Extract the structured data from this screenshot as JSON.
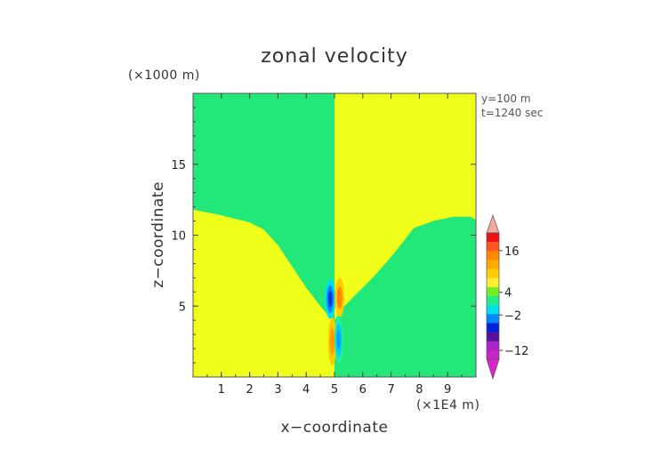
{
  "chart_data": {
    "type": "heatmap",
    "title": "zonal velocity",
    "xlabel": "x−coordinate",
    "ylabel": "z−coordinate",
    "x_unit": "(×1E4 m)",
    "y_unit": "(×1000 m)",
    "annotations": [
      "y=100 m",
      "t=1240 sec"
    ],
    "xlim": [
      0,
      10
    ],
    "ylim": [
      0,
      20
    ],
    "x_ticks": [
      "1",
      "2",
      "3",
      "4",
      "5",
      "6",
      "7",
      "8",
      "9"
    ],
    "y_ticks": [
      "5",
      "10",
      "15"
    ],
    "colorbar": {
      "tick_labels": [
        "16",
        "4",
        "−2",
        "−12"
      ],
      "colors": [
        "#ee1111",
        "#ff5522",
        "#ff8800",
        "#ffaa00",
        "#ffcc00",
        "#ffee33",
        "#77ee22",
        "#22ee88",
        "#00ddee",
        "#0088ff",
        "#0022dd",
        "#551199",
        "#aa22cc",
        "#cc22cc"
      ],
      "extend_top_color": "#f4a6a0",
      "extend_bottom_color": "#dd22cc"
    },
    "regions": {
      "positive_color": "#f0ff1a",
      "negative_color": "#22e87a"
    },
    "boundary_left": {
      "x": [
        0,
        1,
        2,
        2.5,
        3,
        3.5,
        4,
        4.5,
        4.8,
        5
      ],
      "z": [
        11.8,
        11.4,
        10.9,
        10.4,
        9.3,
        7.8,
        6.3,
        5.0,
        4.3,
        4.0
      ]
    },
    "boundary_right": {
      "x": [
        5,
        5.3,
        5.8,
        6.3,
        6.8,
        7.3,
        7.8,
        8.5,
        9.2,
        9.8,
        10
      ],
      "z": [
        4.0,
        4.9,
        5.9,
        6.9,
        8.0,
        9.2,
        10.5,
        11.0,
        11.3,
        11.3,
        11.1
      ]
    },
    "vortices": [
      {
        "x": 4.85,
        "z": 5.5,
        "rx": 0.18,
        "rz": 1.4,
        "colors": [
          "#00ddee",
          "#0088ff",
          "#1133dd"
        ]
      },
      {
        "x": 5.18,
        "z": 5.6,
        "rx": 0.17,
        "rz": 1.4,
        "colors": [
          "#ffcc00",
          "#ff8800"
        ]
      },
      {
        "x": 4.92,
        "z": 2.5,
        "rx": 0.15,
        "rz": 1.7,
        "colors": [
          "#ffcc00",
          "#ff9900"
        ]
      },
      {
        "x": 5.15,
        "z": 2.6,
        "rx": 0.15,
        "rz": 1.7,
        "colors": [
          "#22eeaa",
          "#00ccee",
          "#0099ff"
        ]
      }
    ]
  }
}
